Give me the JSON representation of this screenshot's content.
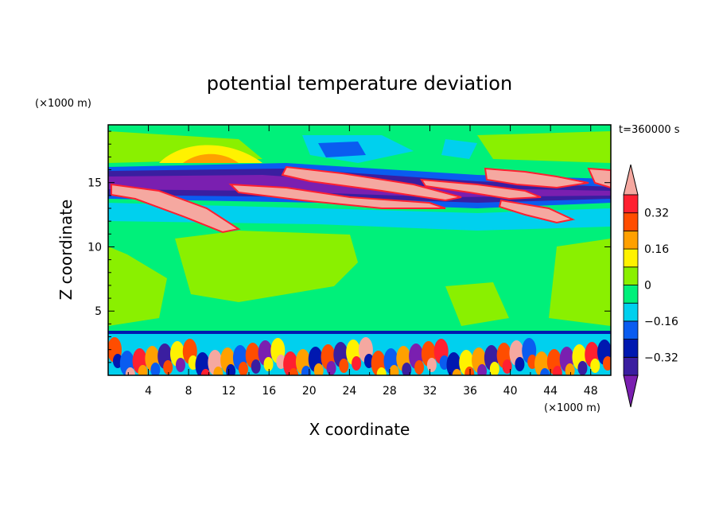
{
  "chart_data": {
    "type": "heatmap",
    "title": "potential temperature deviation",
    "xlabel": "X coordinate",
    "ylabel": "Z coordinate",
    "x_unit": "(×1000 m)",
    "y_unit": "(×1000 m)",
    "time_label": "t=360000 s",
    "xlim": [
      0,
      50
    ],
    "ylim": [
      0,
      19.5
    ],
    "x_ticks": [
      4,
      8,
      12,
      16,
      20,
      24,
      28,
      32,
      36,
      40,
      44,
      48
    ],
    "y_ticks": [
      5,
      10,
      15
    ],
    "colorbar": {
      "levels": [
        -0.4,
        -0.32,
        -0.24,
        -0.16,
        -0.08,
        0,
        0.08,
        0.16,
        0.24,
        0.32,
        0.4
      ],
      "labels": [
        "0.32",
        "0.16",
        "0",
        "−0.16",
        "−0.32"
      ],
      "label_values": [
        0.32,
        0.16,
        0,
        -0.16,
        -0.32
      ],
      "colors": [
        "#7a1fb0",
        "#3a1ea0",
        "#0018b0",
        "#0a5cf0",
        "#00d0ee",
        "#00f07a",
        "#8af000",
        "#fff200",
        "#ffa000",
        "#ff4d00",
        "#ff2030",
        "#f5a8a0"
      ],
      "extend": "both"
    }
  }
}
